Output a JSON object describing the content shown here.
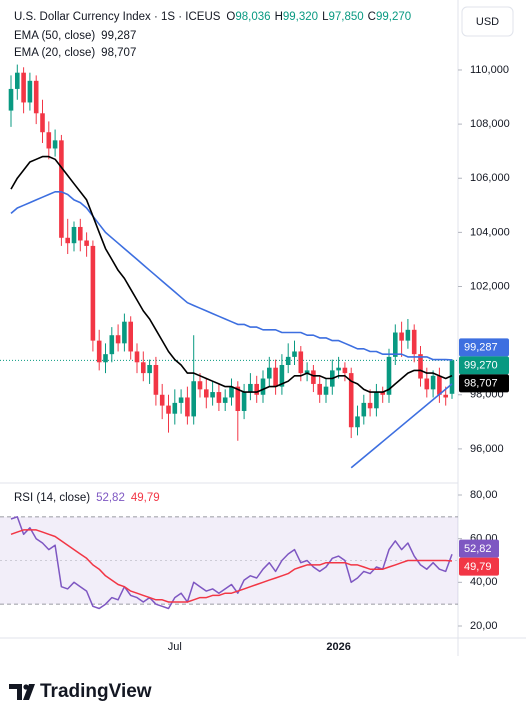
{
  "chart_data": {
    "type": "candlestick",
    "title": "U.S. Dollar Currency Index · 1S · ICEUS",
    "ohlc_legend": [
      {
        "label": "O",
        "value": "98,036"
      },
      {
        "label": "H",
        "value": "99,320"
      },
      {
        "label": "L",
        "value": "97,850"
      },
      {
        "label": "C",
        "value": "99,270"
      }
    ],
    "currency": "USD",
    "categories": [
      null,
      null,
      null,
      null,
      null,
      null,
      null,
      null,
      null,
      null,
      null,
      null,
      null,
      null,
      null,
      null,
      null,
      null,
      null,
      null,
      null,
      null,
      null,
      null,
      null,
      null,
      "Jul",
      null,
      null,
      null,
      null,
      null,
      null,
      null,
      null,
      null,
      null,
      null,
      null,
      null,
      null,
      null,
      null,
      null,
      null,
      null,
      null,
      null,
      null,
      null,
      null,
      null,
      "2026",
      null,
      null,
      null,
      null,
      null,
      null,
      null,
      null,
      null,
      null,
      null,
      null,
      null,
      null,
      null,
      null,
      null,
      null
    ],
    "open": [
      108.5,
      109.3,
      109.9,
      108.8,
      109.6,
      108.4,
      107.7,
      107.1,
      107.4,
      103.8,
      103.6,
      104.2,
      103.7,
      103.5,
      100.0,
      99.2,
      99.5,
      100.2,
      99.9,
      100.7,
      99.6,
      99.2,
      98.8,
      99.1,
      98.0,
      97.6,
      97.3,
      97.7,
      97.9,
      97.2,
      98.5,
      98.2,
      97.9,
      98.1,
      97.7,
      97.9,
      98.3,
      97.4,
      98.1,
      98.4,
      98.0,
      98.6,
      99.0,
      98.3,
      99.1,
      99.4,
      99.6,
      98.8,
      98.9,
      98.4,
      98.0,
      98.3,
      98.9,
      99.0,
      98.8,
      96.8,
      97.2,
      97.7,
      97.5,
      98.1,
      98.0,
      99.4,
      100.3,
      100.0,
      100.4,
      99.5,
      98.6,
      98.2,
      98.7,
      98.0,
      98.036
    ],
    "high": [
      109.8,
      110.2,
      110.1,
      109.9,
      109.8,
      108.9,
      108.1,
      107.8,
      107.6,
      104.5,
      104.4,
      104.5,
      104.0,
      103.7,
      100.4,
      99.9,
      100.5,
      100.6,
      101.0,
      100.9,
      99.9,
      99.6,
      99.3,
      99.4,
      98.4,
      98.0,
      98.2,
      98.2,
      98.3,
      100.2,
      98.8,
      98.6,
      98.5,
      98.4,
      98.2,
      98.6,
      98.5,
      98.4,
      98.8,
      98.7,
      98.9,
      99.4,
      99.3,
      99.5,
      99.9,
      100.0,
      99.8,
      99.2,
      99.1,
      98.7,
      98.6,
      99.3,
      99.4,
      99.2,
      99.0,
      97.6,
      98.0,
      98.2,
      98.4,
      98.3,
      99.7,
      100.6,
      100.7,
      100.8,
      100.6,
      99.8,
      99.0,
      98.9,
      99.0,
      98.3,
      99.32
    ],
    "low": [
      107.9,
      108.9,
      108.4,
      108.5,
      108.0,
      107.3,
      106.7,
      106.8,
      103.5,
      103.2,
      103.3,
      103.3,
      103.1,
      99.6,
      98.9,
      98.8,
      99.2,
      99.6,
      99.6,
      99.3,
      98.8,
      98.5,
      98.4,
      97.6,
      97.1,
      96.6,
      96.9,
      97.3,
      96.9,
      96.9,
      97.9,
      97.5,
      97.6,
      97.4,
      97.4,
      97.6,
      96.3,
      97.1,
      97.8,
      97.7,
      97.7,
      98.3,
      98.0,
      98.0,
      98.8,
      99.1,
      98.5,
      98.5,
      98.1,
      97.7,
      97.7,
      98.0,
      98.6,
      98.5,
      96.4,
      96.5,
      96.9,
      97.2,
      97.2,
      97.7,
      97.7,
      99.1,
      99.4,
      99.7,
      99.2,
      98.3,
      97.9,
      97.9,
      97.7,
      97.6,
      97.85
    ],
    "close": [
      109.3,
      109.9,
      108.8,
      109.6,
      108.4,
      107.7,
      107.1,
      107.4,
      103.8,
      103.6,
      104.2,
      103.7,
      103.5,
      100.0,
      99.2,
      99.5,
      100.2,
      99.9,
      100.7,
      99.6,
      99.2,
      98.8,
      99.1,
      98.0,
      97.6,
      97.3,
      97.7,
      97.9,
      97.2,
      98.5,
      98.2,
      97.9,
      98.1,
      97.7,
      97.9,
      98.3,
      97.4,
      98.1,
      98.4,
      98.0,
      98.6,
      99.0,
      98.3,
      99.1,
      99.4,
      99.6,
      98.8,
      98.9,
      98.4,
      98.0,
      98.3,
      98.9,
      99.0,
      98.8,
      96.8,
      97.2,
      97.7,
      97.5,
      98.1,
      98.0,
      99.4,
      100.3,
      100.0,
      100.4,
      99.5,
      98.6,
      98.2,
      98.7,
      98.0,
      97.9,
      99.27
    ],
    "up_color": "#089981",
    "down_color": "#f23645",
    "last_price": {
      "value": 99.27,
      "label": "99,270"
    },
    "series": [
      {
        "name": "EMA (50, close)",
        "color": "#3d6fe0",
        "values": [
          104.7,
          104.9,
          105.0,
          105.1,
          105.2,
          105.3,
          105.4,
          105.5,
          105.5,
          105.4,
          105.2,
          105.1,
          104.9,
          104.6,
          104.3,
          104.0,
          103.8,
          103.6,
          103.4,
          103.2,
          103.0,
          102.8,
          102.6,
          102.4,
          102.2,
          102.0,
          101.8,
          101.6,
          101.4,
          101.3,
          101.2,
          101.1,
          101.0,
          100.9,
          100.8,
          100.7,
          100.6,
          100.6,
          100.5,
          100.5,
          100.4,
          100.4,
          100.4,
          100.3,
          100.3,
          100.3,
          100.3,
          100.2,
          100.2,
          100.1,
          100.1,
          100.0,
          100.0,
          99.9,
          99.8,
          99.7,
          99.7,
          99.6,
          99.6,
          99.5,
          99.5,
          99.5,
          99.5,
          99.4,
          99.4,
          99.4,
          99.4,
          99.3,
          99.3,
          99.3,
          99.287
        ],
        "badge": {
          "value": 99.287,
          "label": "99,287"
        }
      },
      {
        "name": "EMA (20, close)",
        "color": "#000000",
        "values": [
          105.6,
          106.0,
          106.3,
          106.6,
          106.7,
          106.8,
          106.8,
          106.7,
          106.4,
          106.1,
          105.8,
          105.5,
          105.2,
          104.6,
          104.0,
          103.4,
          103.0,
          102.6,
          102.3,
          101.9,
          101.5,
          101.1,
          100.8,
          100.4,
          100.0,
          99.6,
          99.3,
          99.1,
          98.8,
          98.8,
          98.7,
          98.6,
          98.5,
          98.4,
          98.3,
          98.3,
          98.2,
          98.1,
          98.1,
          98.1,
          98.2,
          98.3,
          98.3,
          98.4,
          98.5,
          98.7,
          98.7,
          98.8,
          98.7,
          98.7,
          98.6,
          98.6,
          98.7,
          98.7,
          98.5,
          98.4,
          98.2,
          98.1,
          98.1,
          98.1,
          98.2,
          98.4,
          98.6,
          98.8,
          98.9,
          98.9,
          98.8,
          98.8,
          98.7,
          98.6,
          98.707
        ],
        "badge": {
          "value": 98.707,
          "label": "98,707"
        }
      }
    ],
    "trendline": {
      "x": [
        54,
        70
      ],
      "values": [
        95.3,
        98.4
      ],
      "color": "#3d6fe0"
    },
    "ylim": [
      94.74,
      112.29
    ],
    "yticks": [
      {
        "value": 96,
        "label": "96,000"
      },
      {
        "value": 98,
        "label": "98,000"
      },
      {
        "value": 102,
        "label": "102,000"
      },
      {
        "value": 104,
        "label": "104,000"
      },
      {
        "value": 106,
        "label": "106,000"
      },
      {
        "value": 108,
        "label": "108,000"
      },
      {
        "value": 110,
        "label": "110,000"
      }
    ],
    "rsi": {
      "name": "RSI (14, close)",
      "ylim": [
        14.5,
        85.5
      ],
      "yticks": [
        {
          "value": 20,
          "label": "20,00"
        },
        {
          "value": 40,
          "label": "40,00"
        },
        {
          "value": 60,
          "label": "60,00"
        },
        {
          "value": 80,
          "label": "80,00"
        }
      ],
      "bands": [
        30,
        70
      ],
      "midline": 50,
      "band_color": "#7e57c2",
      "series": [
        {
          "color": "#7e57c2",
          "values": [
            69,
            70,
            62,
            65,
            60,
            58,
            55,
            57,
            38,
            37,
            40,
            38,
            36,
            29,
            28,
            30,
            33,
            32,
            38,
            34,
            33,
            31,
            33,
            30,
            29,
            28,
            33,
            35,
            31,
            40,
            38,
            36,
            37,
            35,
            37,
            39,
            35,
            41,
            43,
            42,
            46,
            49,
            45,
            50,
            53,
            55,
            49,
            50,
            47,
            45,
            47,
            51,
            52,
            50,
            40,
            42,
            45,
            44,
            47,
            46,
            55,
            59,
            55,
            58,
            52,
            48,
            46,
            49,
            46,
            45,
            52.82
          ],
          "badge": {
            "value": 52.82,
            "label": "52,82"
          }
        },
        {
          "color": "#f23645",
          "values": [
            62,
            63,
            64,
            64,
            64,
            63,
            62,
            61,
            59,
            57,
            55,
            53,
            51,
            48,
            46,
            43,
            41,
            39,
            38,
            36,
            35,
            34,
            33,
            32,
            32,
            31,
            31,
            31,
            31,
            32,
            33,
            33,
            34,
            34,
            35,
            35,
            36,
            37,
            38,
            39,
            40,
            41,
            42,
            43,
            44,
            46,
            47,
            48,
            48,
            48,
            49,
            49,
            49,
            49,
            48,
            48,
            47,
            46,
            46,
            46,
            47,
            48,
            49,
            50,
            50,
            50,
            50,
            50,
            50,
            50,
            49.79
          ],
          "badge": {
            "value": 49.79,
            "label": "49,79"
          }
        }
      ]
    }
  },
  "footer": {
    "logo": "TradingView"
  }
}
